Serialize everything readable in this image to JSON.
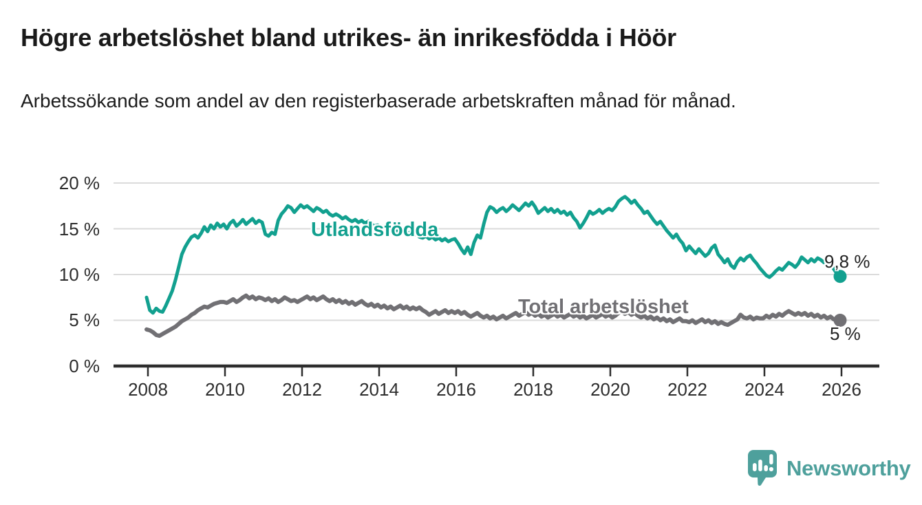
{
  "title": "Högre arbetslöshet bland utrikes- än inrikesfödda i Höör",
  "subtitle": "Arbetssökande som andel av den registerbaserade arbetskraften månad för månad.",
  "footer": {
    "brand": "Newsworthy",
    "brand_color": "#4ea09c"
  },
  "colors": {
    "background": "#ffffff",
    "title_text": "#1a1a1a",
    "axis_text": "#2d2d2d",
    "gridline": "#dbdbdb",
    "axis_line": "#2d2d2d",
    "utlandsfodda": "#12a08f",
    "total": "#717074"
  },
  "chart_data": {
    "type": "line",
    "title": "Högre arbetslöshet bland utrikes- än inrikesfödda i Höör",
    "subtitle": "Arbetssökande som andel av den registerbaserade arbetskraften månad för månad.",
    "unit": "percent",
    "x_start_year": 2008,
    "points_per_year": 12,
    "x_tick_labels": [
      "2008",
      "2010",
      "2012",
      "2014",
      "2016",
      "2018",
      "2020",
      "2022",
      "2024",
      "2026"
    ],
    "y_tick_labels": [
      "0 %",
      "5 %",
      "10 %",
      "15 %",
      "20 %"
    ],
    "ylim": [
      0,
      20
    ],
    "grid": "horizontal",
    "legend_position": "inline-labels",
    "series": [
      {
        "id": "utlandsfodda",
        "name": "Utlandsfödda",
        "color": "#12a08f",
        "stroke_width": 5,
        "end_label": "9,8 %",
        "end_value": 9.8,
        "values": [
          7.5,
          6.1,
          5.8,
          6.3,
          6.0,
          5.9,
          6.6,
          7.4,
          8.2,
          9.4,
          10.8,
          12.2,
          13.0,
          13.6,
          14.1,
          14.3,
          14.0,
          14.5,
          15.2,
          14.7,
          15.4,
          15.0,
          15.6,
          15.2,
          15.5,
          15.0,
          15.6,
          15.9,
          15.3,
          15.6,
          16.0,
          15.5,
          15.8,
          16.1,
          15.6,
          15.9,
          15.7,
          14.4,
          14.2,
          14.6,
          14.4,
          15.9,
          16.6,
          17.0,
          17.5,
          17.3,
          16.8,
          17.2,
          17.6,
          17.3,
          17.5,
          17.2,
          16.9,
          17.3,
          17.1,
          16.8,
          17.0,
          16.6,
          16.4,
          16.6,
          16.4,
          16.1,
          16.3,
          16.0,
          15.8,
          16.0,
          15.7,
          15.9,
          15.6,
          15.8,
          15.5,
          15.3,
          15.4,
          15.1,
          15.3,
          15.0,
          14.8,
          15.0,
          14.7,
          14.9,
          14.6,
          14.4,
          14.6,
          14.3,
          14.4,
          14.1,
          14.0,
          14.2,
          13.9,
          14.1,
          13.8,
          14.0,
          13.7,
          13.9,
          13.6,
          13.8,
          13.9,
          13.4,
          12.8,
          12.3,
          13.0,
          12.2,
          13.5,
          14.3,
          14.0,
          15.5,
          16.8,
          17.4,
          17.2,
          16.8,
          17.1,
          17.3,
          16.9,
          17.2,
          17.6,
          17.3,
          17.0,
          17.4,
          17.8,
          17.5,
          17.9,
          17.4,
          16.7,
          17.0,
          17.3,
          16.9,
          17.2,
          16.8,
          17.1,
          16.7,
          16.9,
          16.5,
          16.8,
          16.2,
          15.8,
          15.1,
          15.6,
          16.2,
          16.9,
          16.6,
          16.8,
          17.1,
          16.7,
          17.0,
          17.2,
          17.0,
          17.4,
          18.0,
          18.3,
          18.5,
          18.2,
          17.8,
          18.1,
          17.6,
          17.2,
          16.7,
          16.9,
          16.4,
          15.9,
          15.5,
          15.8,
          15.3,
          14.8,
          14.4,
          14.0,
          14.4,
          13.8,
          13.4,
          12.6,
          13.1,
          12.7,
          12.3,
          12.8,
          12.4,
          12.0,
          12.3,
          12.9,
          13.2,
          12.2,
          11.8,
          11.3,
          11.7,
          11.0,
          10.7,
          11.4,
          11.8,
          11.5,
          11.9,
          12.1,
          11.6,
          11.2,
          10.7,
          10.3,
          9.9,
          9.7,
          10.0,
          10.4,
          10.7,
          10.5,
          10.9,
          11.3,
          11.1,
          10.8,
          11.2,
          11.9,
          11.6,
          11.3,
          11.7,
          11.4,
          11.8,
          11.6,
          11.3,
          11.5,
          11.2,
          10.6,
          10.1,
          9.8
        ]
      },
      {
        "id": "total",
        "name": "Total arbetslöshet",
        "color": "#717074",
        "stroke_width": 6,
        "end_label": "5 %",
        "end_value": 5.0,
        "values": [
          4.0,
          3.9,
          3.7,
          3.4,
          3.3,
          3.5,
          3.7,
          3.9,
          4.1,
          4.3,
          4.6,
          4.9,
          5.1,
          5.3,
          5.6,
          5.8,
          6.1,
          6.3,
          6.5,
          6.4,
          6.6,
          6.8,
          6.9,
          7.0,
          7.0,
          6.9,
          7.1,
          7.3,
          7.0,
          7.2,
          7.5,
          7.7,
          7.4,
          7.6,
          7.3,
          7.5,
          7.4,
          7.2,
          7.4,
          7.1,
          7.3,
          7.0,
          7.2,
          7.5,
          7.3,
          7.1,
          7.2,
          7.0,
          7.2,
          7.4,
          7.6,
          7.3,
          7.5,
          7.2,
          7.4,
          7.6,
          7.3,
          7.1,
          7.3,
          7.0,
          7.2,
          6.9,
          7.1,
          6.8,
          7.0,
          6.7,
          6.9,
          7.1,
          6.8,
          6.6,
          6.8,
          6.5,
          6.7,
          6.4,
          6.6,
          6.3,
          6.5,
          6.2,
          6.4,
          6.6,
          6.3,
          6.5,
          6.2,
          6.4,
          6.2,
          6.4,
          6.1,
          5.9,
          5.6,
          5.8,
          6.0,
          5.7,
          5.9,
          6.1,
          5.8,
          6.0,
          5.8,
          6.0,
          5.7,
          5.9,
          5.6,
          5.4,
          5.6,
          5.8,
          5.5,
          5.3,
          5.5,
          5.2,
          5.4,
          5.1,
          5.3,
          5.5,
          5.2,
          5.4,
          5.6,
          5.8,
          5.5,
          5.7,
          5.9,
          5.6,
          5.8,
          5.5,
          5.7,
          5.4,
          5.6,
          5.3,
          5.5,
          5.7,
          5.4,
          5.6,
          5.3,
          5.5,
          5.7,
          5.4,
          5.6,
          5.3,
          5.5,
          5.2,
          5.4,
          5.6,
          5.3,
          5.5,
          5.7,
          5.4,
          5.6,
          5.3,
          5.5,
          5.8,
          6.0,
          5.7,
          5.9,
          5.6,
          5.8,
          5.5,
          5.3,
          5.5,
          5.2,
          5.4,
          5.1,
          5.3,
          5.0,
          5.2,
          4.9,
          5.1,
          4.8,
          5.0,
          5.2,
          4.9,
          4.9,
          4.8,
          5.0,
          4.7,
          4.9,
          5.1,
          4.8,
          5.0,
          4.7,
          4.9,
          4.6,
          4.8,
          4.6,
          4.5,
          4.7,
          4.9,
          5.1,
          5.6,
          5.3,
          5.2,
          5.4,
          5.1,
          5.3,
          5.2,
          5.2,
          5.5,
          5.3,
          5.6,
          5.4,
          5.7,
          5.5,
          5.8,
          6.0,
          5.8,
          5.6,
          5.8,
          5.6,
          5.8,
          5.5,
          5.7,
          5.4,
          5.6,
          5.3,
          5.5,
          5.2,
          5.4,
          5.1,
          5.2,
          5.0
        ]
      }
    ]
  }
}
